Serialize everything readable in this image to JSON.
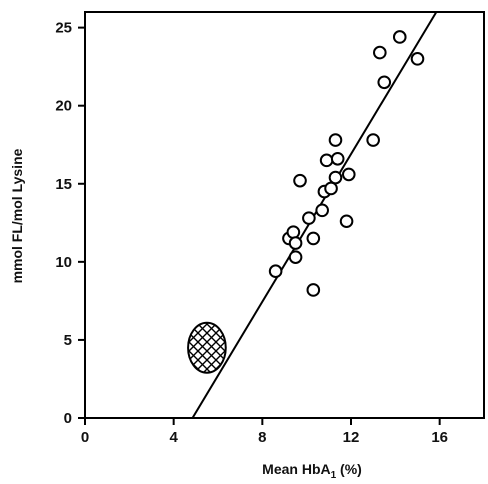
{
  "chart_data": {
    "type": "scatter",
    "title": "",
    "xlabel": "Mean HbA1 (%)",
    "ylabel": "mmol FL/mol Lysine",
    "xlim": [
      0,
      18
    ],
    "ylim": [
      0,
      26
    ],
    "xticks": [
      0,
      4,
      8,
      12,
      16
    ],
    "yticks": [
      0,
      5,
      10,
      15,
      20,
      25
    ],
    "grid": false,
    "legend": "none",
    "series": [
      {
        "points": [
          [
            8.6,
            9.4
          ],
          [
            9.2,
            11.5
          ],
          [
            9.4,
            11.9
          ],
          [
            9.5,
            11.2
          ],
          [
            9.5,
            10.3
          ],
          [
            9.7,
            15.2
          ],
          [
            10.1,
            12.8
          ],
          [
            10.3,
            11.5
          ],
          [
            10.3,
            8.2
          ],
          [
            10.7,
            13.3
          ],
          [
            10.8,
            14.5
          ],
          [
            10.9,
            16.5
          ],
          [
            11.1,
            14.7
          ],
          [
            11.3,
            17.8
          ],
          [
            11.3,
            15.4
          ],
          [
            11.4,
            16.6
          ],
          [
            11.8,
            12.6
          ],
          [
            11.9,
            15.6
          ],
          [
            13.0,
            17.8
          ],
          [
            13.3,
            23.4
          ],
          [
            13.5,
            21.5
          ],
          [
            14.2,
            24.4
          ],
          [
            15.0,
            23.0
          ]
        ]
      }
    ],
    "regression_line": {
      "x": [
        4.85,
        15.85
      ],
      "y": [
        0,
        26
      ]
    },
    "reference_region": {
      "cx": 5.5,
      "cy": 4.5,
      "rx": 0.85,
      "ry": 1.6
    }
  }
}
